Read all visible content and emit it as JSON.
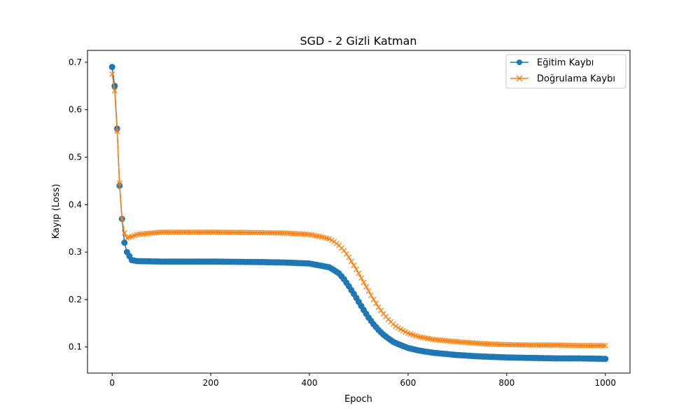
{
  "chart_data": {
    "type": "line",
    "title": "SGD - 2 Gizli Katman",
    "xlabel": "Epoch",
    "ylabel": "Kayıp (Loss)",
    "xlim": [
      -50,
      1050
    ],
    "ylim": [
      0.045,
      0.725
    ],
    "xticks": [
      0,
      200,
      400,
      600,
      800,
      1000
    ],
    "yticks": [
      0.1,
      0.2,
      0.3,
      0.4,
      0.5,
      0.6,
      0.7
    ],
    "grid": false,
    "legend_position": "top-right",
    "colors": {
      "train": "#1f77b4",
      "val": "#ff7f0e"
    },
    "series": [
      {
        "name": "Eğitim Kaybı",
        "marker": "circle",
        "x": [
          0,
          5,
          10,
          15,
          20,
          25,
          30,
          40,
          50,
          100,
          200,
          300,
          350,
          400,
          420,
          440,
          450,
          460,
          470,
          480,
          490,
          500,
          510,
          520,
          530,
          540,
          550,
          560,
          570,
          580,
          600,
          620,
          650,
          700,
          750,
          800,
          850,
          900,
          950,
          1000
        ],
        "values": [
          0.69,
          0.65,
          0.56,
          0.44,
          0.37,
          0.32,
          0.3,
          0.283,
          0.281,
          0.28,
          0.28,
          0.279,
          0.278,
          0.276,
          0.272,
          0.268,
          0.262,
          0.255,
          0.243,
          0.228,
          0.212,
          0.195,
          0.178,
          0.162,
          0.148,
          0.136,
          0.126,
          0.118,
          0.111,
          0.106,
          0.098,
          0.093,
          0.088,
          0.083,
          0.08,
          0.078,
          0.077,
          0.076,
          0.076,
          0.075
        ]
      },
      {
        "name": "Doğrulama Kaybı",
        "marker": "x",
        "x": [
          0,
          5,
          10,
          15,
          20,
          25,
          30,
          40,
          50,
          100,
          200,
          300,
          350,
          400,
          420,
          440,
          450,
          460,
          470,
          480,
          490,
          500,
          510,
          520,
          530,
          540,
          550,
          560,
          570,
          580,
          600,
          620,
          650,
          700,
          750,
          800,
          850,
          900,
          950,
          1000
        ],
        "values": [
          0.675,
          0.64,
          0.555,
          0.445,
          0.37,
          0.34,
          0.33,
          0.333,
          0.337,
          0.342,
          0.342,
          0.341,
          0.34,
          0.337,
          0.333,
          0.328,
          0.322,
          0.314,
          0.303,
          0.289,
          0.272,
          0.255,
          0.236,
          0.218,
          0.2,
          0.184,
          0.17,
          0.158,
          0.148,
          0.14,
          0.129,
          0.122,
          0.116,
          0.111,
          0.107,
          0.105,
          0.104,
          0.104,
          0.103,
          0.103
        ]
      }
    ]
  }
}
